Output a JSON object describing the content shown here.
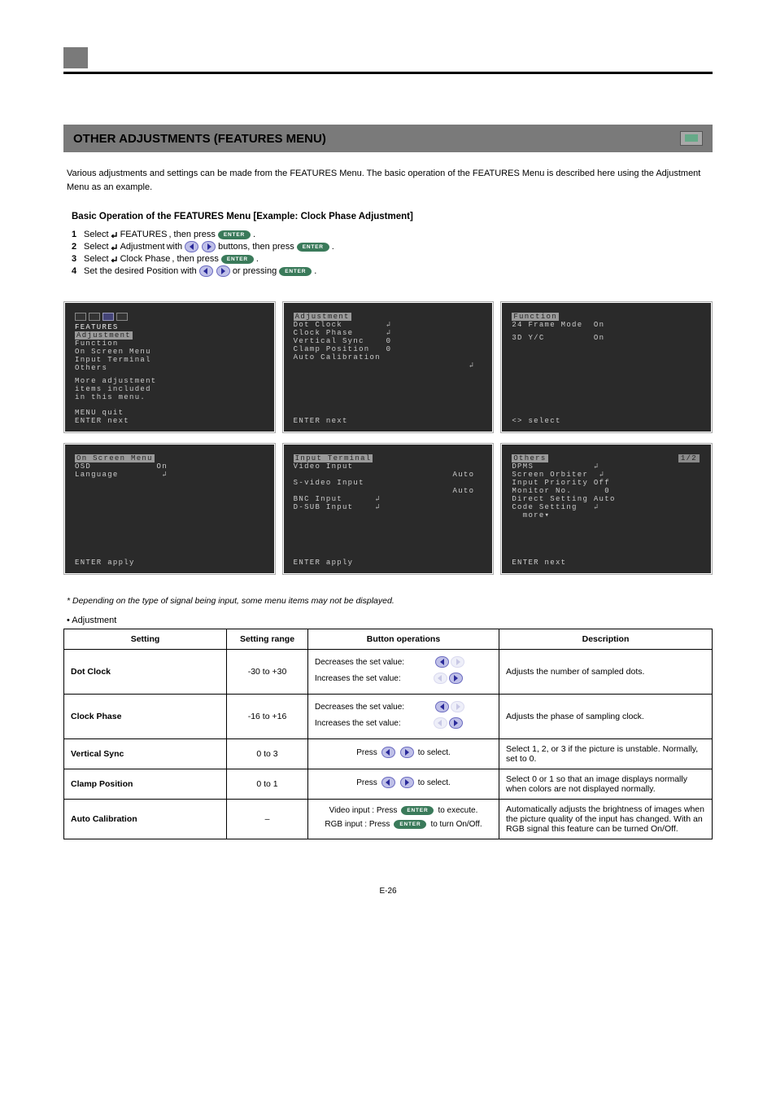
{
  "section": {
    "title": "OTHER ADJUSTMENTS (FEATURES MENU)",
    "intro": "Various adjustments and settings can be made from the FEATURES  Menu. The basic operation of the FEATURES Menu is described here using the Adjustment Menu as an example."
  },
  "basic_op_title": "Basic Operation of the FEATURES Menu [Example: Clock Phase Adjustment]",
  "steps": [
    {
      "n": "1",
      "text_before": "Select ",
      "quoted": "FEATURES",
      "text_mid": ", then press ",
      "btn": "enter",
      "tail": "."
    },
    {
      "n": "2",
      "text_before": "Select ",
      "quoted": "Adjustment",
      "text_mid": " with ",
      "btn": "arrows",
      "tail_before": " buttons, then press ",
      "btn2": "enter",
      "tail": "."
    },
    {
      "n": "3",
      "text_before": "Select ",
      "quoted": "Clock Phase",
      "text_mid": ", then press ",
      "btn": "enter",
      "tail": "."
    },
    {
      "n": "4",
      "text_before": "Set the desired Position with ",
      "btn": "arrows",
      "tail_before": " or pressing ",
      "btn2": "enter",
      "tail": "."
    }
  ],
  "osd": {
    "features": {
      "title": "FEATURES",
      "items": [
        "Adjustment",
        "Function",
        "On Screen Menu",
        "Input Terminal",
        "Others"
      ],
      "note": "More adjustment\nitems included\nin this menu.",
      "footer": "MENU quit\nENTER next"
    },
    "adjustment": {
      "title": "Adjustment",
      "items": [
        {
          "label": "Dot Clock",
          "mark": "hook"
        },
        {
          "label": "Clock Phase",
          "mark": "hook"
        },
        {
          "label": "Vertical Sync",
          "val": "0"
        },
        {
          "label": "Clamp Position",
          "val": "0"
        },
        {
          "label": "Auto Calibration",
          "mark": "hook_below"
        }
      ],
      "footer": "ENTER next"
    },
    "function": {
      "title": "Function",
      "items": [
        {
          "label": "24 Frame Mode",
          "val": "On"
        },
        {
          "label": "3D Y/C",
          "val": "On"
        }
      ],
      "footer": "<> select"
    },
    "onscreen": {
      "title": "On Screen Menu",
      "items": [
        {
          "label": "OSD",
          "val": "On"
        },
        {
          "label": "Language",
          "mark": "hook"
        }
      ],
      "footer": "ENTER apply"
    },
    "inputterm": {
      "title": "Input Terminal",
      "items": [
        {
          "label": "Video Input",
          "val": "Auto"
        },
        {
          "label": "S-video Input",
          "val": "Auto"
        },
        {
          "label": "BNC Input",
          "mark": "hook"
        },
        {
          "label": "D-SUB Input",
          "mark": "hook"
        }
      ],
      "footer": "ENTER apply"
    },
    "others": {
      "title": "Others",
      "page": "1/2",
      "items": [
        {
          "label": "DPMS",
          "mark": "hook"
        },
        {
          "label": "Screen Orbiter",
          "mark": "hook"
        },
        {
          "label": "Input Priority",
          "val": "Off"
        },
        {
          "label": "Monitor No.",
          "val": "0"
        },
        {
          "label": "Direct Setting",
          "val": "Auto"
        },
        {
          "label": "Code Setting",
          "mark": "hook"
        },
        {
          "label": "  more▾",
          "val": ""
        }
      ],
      "footer": "ENTER next"
    }
  },
  "note_italic": "* Depending on the type of signal being input, some menu items may not be displayed.",
  "adj_heading": "• Adjustment",
  "table": {
    "headers": [
      "Setting",
      "Setting range",
      "Button operations",
      "Description"
    ],
    "rows": [
      {
        "setting": "Dot Clock",
        "range": "-30 to +30",
        "ops": [
          {
            "txt": "Decreases the set value:",
            "btn": "left"
          },
          {
            "txt": "Increases the set value:",
            "btn": "right"
          }
        ],
        "desc": "Adjusts the number of sampled dots."
      },
      {
        "setting": "Clock Phase",
        "range": "-16 to +16",
        "ops": [
          {
            "txt": "Decreases the set value:",
            "btn": "left"
          },
          {
            "txt": "Increases the set value:",
            "btn": "right"
          }
        ],
        "desc": "Adjusts the phase of sampling clock."
      },
      {
        "setting": "Vertical Sync",
        "range": "0 to 3",
        "ops": [
          {
            "txt": "Press ",
            "btn": "arrows",
            "tail": " to select."
          }
        ],
        "desc": "Select 1, 2, or 3 if the picture is unstable. Normally, set to 0."
      },
      {
        "setting": "Clamp Position",
        "range": "0 to 1",
        "ops": [
          {
            "txt": "Press ",
            "btn": "arrows",
            "tail": " to select."
          }
        ],
        "desc": "Select 0 or 1 so that an image displays normally when colors are not displayed normally."
      },
      {
        "setting": "Auto Calibration",
        "range": "–",
        "ops": [
          {
            "txt": "Video input : Press ",
            "btn": "enter",
            "tail": " to execute."
          },
          {
            "txt": "RGB input : Press ",
            "btn": "enter",
            "tail": " to turn On/Off."
          }
        ],
        "desc": "Automatically adjusts the brightness of images when the picture quality of the input has changed. With an RGB signal this feature can be turned On/Off."
      }
    ]
  },
  "page_number": "E-26"
}
